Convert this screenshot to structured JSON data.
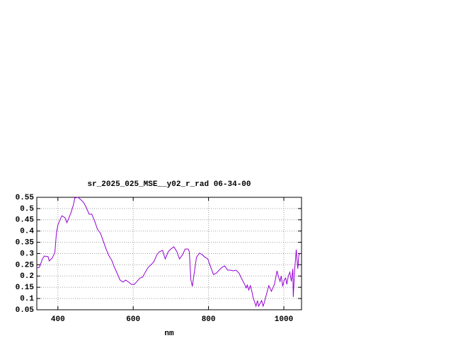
{
  "chart_data": {
    "type": "line",
    "title": "sr_2025_025_MSE__y02_r_rad 06-34-00",
    "x_label": "nm",
    "xlim": [
      344,
      1047
    ],
    "xticks": [
      400,
      600,
      800,
      1000
    ],
    "ylim": [
      0.05,
      0.55
    ],
    "yticks": [
      0.05,
      0.1,
      0.15,
      0.2,
      0.25,
      0.3,
      0.35,
      0.4,
      0.45,
      0.5,
      0.55
    ],
    "grid": true,
    "x": [
      344,
      351,
      359,
      364,
      374,
      377,
      385,
      392,
      396,
      400,
      408,
      411,
      419,
      424,
      434,
      441,
      445,
      453,
      460,
      468,
      475,
      483,
      490,
      498,
      505,
      513,
      520,
      528,
      535,
      543,
      550,
      558,
      565,
      573,
      580,
      588,
      595,
      603,
      610,
      618,
      625,
      633,
      640,
      648,
      655,
      663,
      670,
      678,
      685,
      693,
      700,
      708,
      716,
      723,
      731,
      738,
      746,
      749,
      753,
      757,
      761,
      768,
      776,
      783,
      791,
      798,
      806,
      813,
      821,
      828,
      836,
      843,
      851,
      858,
      866,
      873,
      881,
      888,
      896,
      900,
      903,
      907,
      911,
      915,
      918,
      926,
      930,
      933,
      941,
      945,
      948,
      952,
      960,
      967,
      975,
      982,
      986,
      990,
      993,
      997,
      1001,
      1005,
      1008,
      1012,
      1016,
      1020,
      1024,
      1025,
      1029,
      1033,
      1037,
      1040,
      1044
    ],
    "series": [
      {
        "color": "#9400d3",
        "values": [
          0.236,
          0.239,
          0.276,
          0.289,
          0.286,
          0.267,
          0.28,
          0.305,
          0.39,
          0.427,
          0.459,
          0.468,
          0.459,
          0.437,
          0.478,
          0.515,
          0.547,
          0.55,
          0.541,
          0.528,
          0.506,
          0.475,
          0.475,
          0.443,
          0.408,
          0.39,
          0.358,
          0.32,
          0.292,
          0.27,
          0.239,
          0.21,
          0.182,
          0.173,
          0.182,
          0.173,
          0.163,
          0.163,
          0.176,
          0.191,
          0.195,
          0.22,
          0.239,
          0.251,
          0.264,
          0.295,
          0.308,
          0.314,
          0.276,
          0.308,
          0.32,
          0.33,
          0.308,
          0.276,
          0.295,
          0.32,
          0.32,
          0.308,
          0.185,
          0.154,
          0.201,
          0.283,
          0.302,
          0.295,
          0.283,
          0.276,
          0.239,
          0.207,
          0.213,
          0.226,
          0.239,
          0.245,
          0.226,
          0.226,
          0.223,
          0.226,
          0.213,
          0.188,
          0.163,
          0.147,
          0.16,
          0.138,
          0.157,
          0.132,
          0.107,
          0.066,
          0.091,
          0.066,
          0.091,
          0.066,
          0.081,
          0.107,
          0.157,
          0.132,
          0.163,
          0.223,
          0.195,
          0.176,
          0.201,
          0.154,
          0.182,
          0.191,
          0.163,
          0.201,
          0.217,
          0.176,
          0.232,
          0.107,
          0.232,
          0.317,
          0.232,
          0.295,
          0.302
        ]
      }
    ]
  }
}
